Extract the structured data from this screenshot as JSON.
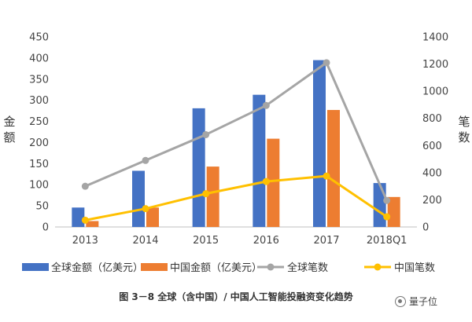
{
  "chart_data": {
    "type": "bar+line",
    "categories": [
      "2013",
      "2014",
      "2015",
      "2016",
      "2017",
      "2018Q1"
    ],
    "bar_series": [
      {
        "name": "全球金额（亿美元）",
        "color": "#4472C4",
        "values": [
          46,
          133,
          281,
          313,
          395,
          104
        ]
      },
      {
        "name": "中国金额（亿美元）",
        "color": "#ED7D31",
        "values": [
          14,
          46,
          143,
          209,
          277,
          71
        ]
      }
    ],
    "line_series": [
      {
        "name": "全球笔数",
        "color": "#A5A5A5",
        "values": [
          300,
          490,
          680,
          895,
          1210,
          195
        ]
      },
      {
        "name": "中国笔数",
        "color": "#FFC000",
        "values": [
          50,
          135,
          245,
          335,
          375,
          75
        ]
      }
    ],
    "y_left": {
      "label": "金额",
      "min": 0,
      "max": 450,
      "step": 50,
      "ticks": [
        "0",
        "50",
        "100",
        "150",
        "200",
        "250",
        "300",
        "350",
        "400",
        "450"
      ]
    },
    "y_right": {
      "label": "笔数",
      "min": 0,
      "max": 1400,
      "step": 200,
      "ticks": [
        "0",
        "200",
        "400",
        "600",
        "800",
        "1000",
        "1200",
        "1400"
      ]
    },
    "legend": [
      "全球金额（亿美元）",
      "中国金额（亿美元）",
      "全球笔数",
      "中国笔数"
    ],
    "legend_position": "bottom",
    "grid": false
  },
  "caption": "图 3－8 全球（含中国）/ 中国人工智能投融资变化趋势",
  "watermark": "量子位"
}
